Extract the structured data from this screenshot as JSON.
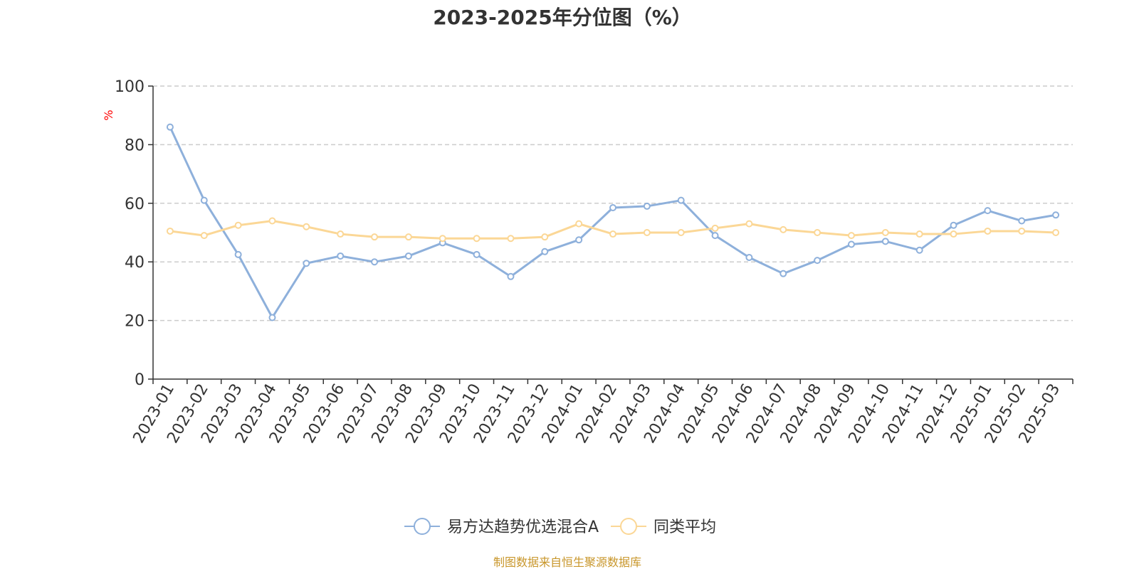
{
  "chart_data": {
    "type": "line",
    "title": "2023-2025年分位图（%）",
    "ylabel": "%",
    "ylim": [
      0,
      100
    ],
    "yticks": [
      0,
      20,
      40,
      60,
      80,
      100
    ],
    "grid": true,
    "legend_position": "bottom-center",
    "categories": [
      "2023-01",
      "2023-02",
      "2023-03",
      "2023-04",
      "2023-05",
      "2023-06",
      "2023-07",
      "2023-08",
      "2023-09",
      "2023-10",
      "2023-11",
      "2023-12",
      "2024-01",
      "2024-02",
      "2024-03",
      "2024-04",
      "2024-05",
      "2024-06",
      "2024-07",
      "2024-08",
      "2024-09",
      "2024-10",
      "2024-11",
      "2024-12",
      "2025-01",
      "2025-02",
      "2025-03"
    ],
    "series": [
      {
        "name": "易方达趋势优选混合A",
        "color": "#8eb0db",
        "values": [
          86,
          61,
          42.5,
          21,
          39.5,
          42,
          40,
          42,
          46.5,
          42.5,
          35,
          43.5,
          47.5,
          58.5,
          59,
          61,
          49,
          41.5,
          36,
          40.5,
          46,
          47,
          44,
          52.5,
          57.5,
          54,
          56
        ]
      },
      {
        "name": "同类平均",
        "color": "#fbd796",
        "values": [
          50.5,
          49,
          52.5,
          54,
          52,
          49.5,
          48.5,
          48.5,
          48,
          48,
          48,
          48.5,
          53,
          49.5,
          50,
          50,
          51.5,
          53,
          51,
          50,
          49,
          50,
          49.5,
          49.5,
          50.5,
          50.5,
          50
        ]
      }
    ]
  },
  "source_note": "制图数据来自恒生聚源数据库",
  "colors": {
    "axis": "#333333",
    "grid": "#cccccc",
    "unit": "#ff0000",
    "source": "#c8962a"
  }
}
